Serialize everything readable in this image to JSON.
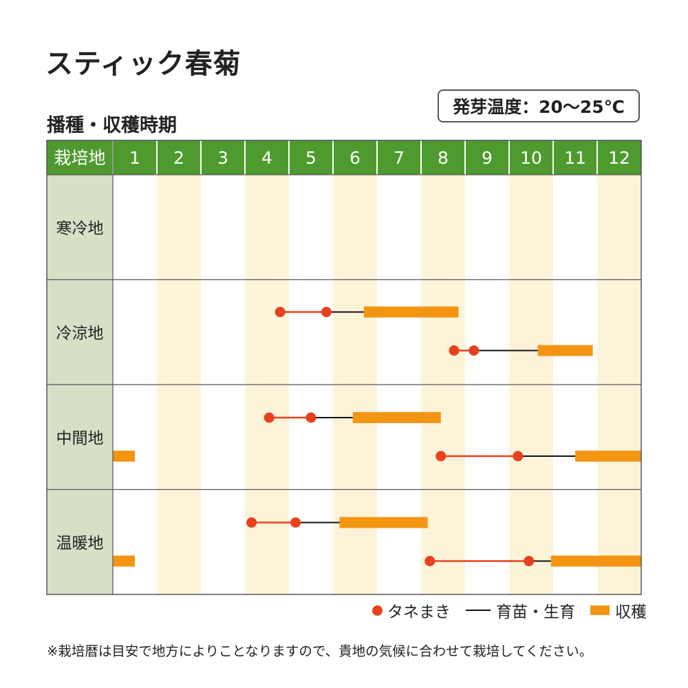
{
  "title": "スティック春菊",
  "subtitle": "播種・収穫時期",
  "germination_temp": "発芽温度：20〜25℃",
  "footnote": "※栽培暦は目安で地方によりことなりますので、貴地の気候に合わせて栽培してください。",
  "colors": {
    "header_bg": "#4e9a2f",
    "header_text": "#ffffff",
    "region_bg": "#d6e0c6",
    "stripe": "#fdf3d9",
    "sowing": "#e8401c",
    "growing": "#111111",
    "harvest": "#f39513",
    "border": "#555555"
  },
  "legend": {
    "sowing": "タネまき",
    "growing": "育苗・生育",
    "harvest": "収穫"
  },
  "chart_data": {
    "type": "table",
    "header_label": "栽培地",
    "months": [
      "1",
      "2",
      "3",
      "4",
      "5",
      "6",
      "7",
      "8",
      "9",
      "10",
      "11",
      "12"
    ],
    "month_units_note_x_domain": [
      1,
      13
    ],
    "regions": [
      {
        "name": "寒冷地",
        "rows": []
      },
      {
        "name": "冷涼地",
        "rows": [
          {
            "sowing": [
              4.8,
              5.85
            ],
            "growing": [
              5.85,
              6.7
            ],
            "harvest": [
              6.7,
              8.85
            ]
          },
          {
            "sowing": [
              8.75,
              9.2
            ],
            "growing": [
              9.2,
              10.65
            ],
            "harvest": [
              10.65,
              11.9
            ]
          }
        ]
      },
      {
        "name": "中間地",
        "rows": [
          {
            "sowing": [
              4.55,
              5.5
            ],
            "growing": [
              5.5,
              6.45
            ],
            "harvest": [
              6.45,
              8.45
            ]
          },
          {
            "harvest": [
              1.0,
              1.5
            ]
          },
          {
            "sowing": [
              8.45,
              10.2
            ],
            "growing": [
              10.2,
              11.5
            ],
            "harvest": [
              11.5,
              13.0
            ]
          }
        ]
      },
      {
        "name": "温暖地",
        "rows": [
          {
            "sowing": [
              4.15,
              5.15
            ],
            "growing": [
              5.15,
              6.15
            ],
            "harvest": [
              6.15,
              8.15
            ]
          },
          {
            "harvest": [
              1.0,
              1.5
            ]
          },
          {
            "sowing": [
              8.2,
              10.45
            ],
            "growing": [
              10.45,
              10.95
            ],
            "harvest": [
              10.95,
              13.0
            ]
          }
        ]
      }
    ]
  }
}
